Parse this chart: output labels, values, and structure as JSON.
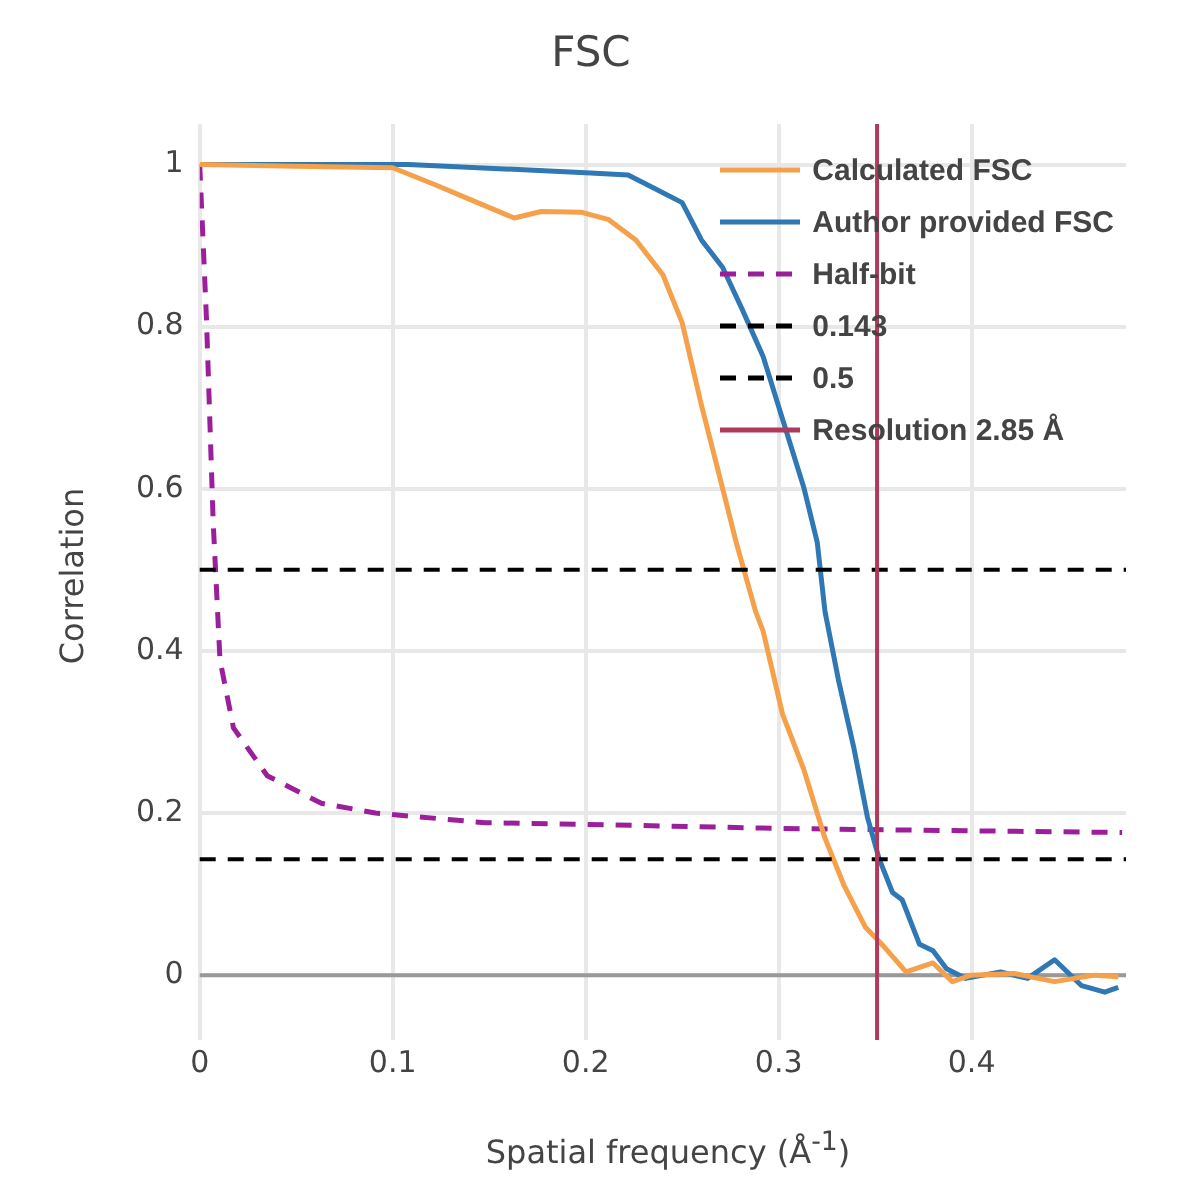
{
  "chart_data": {
    "type": "line",
    "title": "FSC",
    "xlabel": "Spatial frequency (Å$^{-1}$)",
    "ylabel": "Correlation",
    "xlim": [
      0,
      0.48
    ],
    "xticks": [
      0,
      0.1,
      0.2,
      0.3,
      0.4
    ],
    "ylim": [
      -0.08,
      1.05
    ],
    "yticks": [
      0,
      0.2,
      0.4,
      0.6,
      0.8,
      1
    ],
    "grid": true,
    "legend": "top right",
    "marker": "none",
    "series": [
      {
        "name": "Calculated FSC",
        "color": "#f5a04a",
        "line_style": "solid",
        "x": [
          0,
          0.05,
          0.1,
          0.122,
          0.139,
          0.163,
          0.177,
          0.198,
          0.212,
          0.226,
          0.24,
          0.25,
          0.26,
          0.269,
          0.278,
          0.288,
          0.292,
          0.302,
          0.313,
          0.324,
          0.334,
          0.345,
          0.355,
          0.366,
          0.38,
          0.39,
          0.4,
          0.422,
          0.443,
          0.464,
          0.476
        ],
        "values": [
          1,
          0.998,
          0.996,
          0.975,
          0.958,
          0.934,
          0.942,
          0.941,
          0.932,
          0.907,
          0.864,
          0.805,
          0.703,
          0.619,
          0.534,
          0.449,
          0.424,
          0.322,
          0.254,
          0.169,
          0.11,
          0.059,
          0.034,
          0.004,
          0.015,
          -0.008,
          0,
          0.002,
          -0.008,
          0,
          -0.002
        ]
      },
      {
        "name": "Author provided FSC",
        "color": "#2f78b4",
        "line_style": "solid",
        "x": [
          0,
          0.108,
          0.2,
          0.222,
          0.236,
          0.25,
          0.26,
          0.271,
          0.281,
          0.292,
          0.302,
          0.313,
          0.32,
          0.324,
          0.331,
          0.339,
          0.346,
          0.352,
          0.359,
          0.364,
          0.373,
          0.38,
          0.387,
          0.397,
          0.415,
          0.429,
          0.443,
          0.457,
          0.469,
          0.476
        ],
        "values": [
          1,
          1,
          0.99,
          0.987,
          0.97,
          0.953,
          0.907,
          0.873,
          0.822,
          0.763,
          0.686,
          0.602,
          0.534,
          0.449,
          0.364,
          0.28,
          0.195,
          0.144,
          0.102,
          0.093,
          0.038,
          0.03,
          0.008,
          -0.004,
          0.004,
          -0.004,
          0.019,
          -0.013,
          -0.021,
          -0.015
        ]
      },
      {
        "name": "Half-bit",
        "color": "#9b1f9b",
        "line_style": "dashed",
        "x": [
          0,
          0.0035,
          0.007,
          0.0105,
          0.0175,
          0.035,
          0.063,
          0.091,
          0.148,
          0.2,
          0.3,
          0.4,
          0.478
        ],
        "values": [
          1,
          0.81,
          0.558,
          0.389,
          0.305,
          0.246,
          0.212,
          0.2,
          0.188,
          0.186,
          0.181,
          0.178,
          0.176
        ]
      }
    ],
    "ref_lines": [
      {
        "axis": "y",
        "value": 0.143,
        "label": "0.143",
        "color": "#000000",
        "line_style": "dashed"
      },
      {
        "axis": "y",
        "value": 0.5,
        "label": "0.5",
        "color": "#000000",
        "line_style": "dashed"
      },
      {
        "axis": "x",
        "value": 0.351,
        "label": "Resolution 2.85 Å",
        "color": "#b03a5b",
        "line_style": "solid"
      }
    ]
  }
}
